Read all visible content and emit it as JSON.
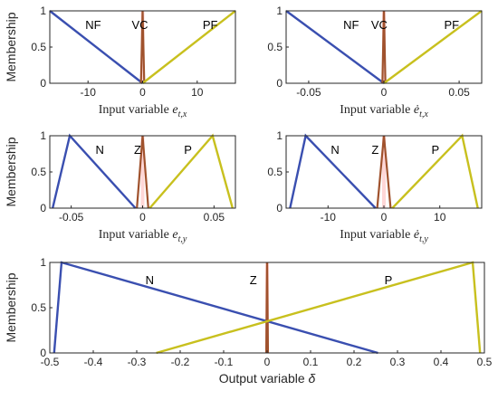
{
  "colors": {
    "negative": "#3a4fb0",
    "zero": "#a0522d",
    "zero_highlight": "#ff8c8c",
    "positive": "#c8c01e"
  },
  "chart_data": [
    {
      "type": "line",
      "ylabel": "Membership",
      "xlabel": "Input variable e_{t,x}",
      "xlabel_parts": [
        "Input variable ",
        "e",
        "t,x"
      ],
      "xlim": [
        -17,
        17
      ],
      "ylim": [
        0,
        1
      ],
      "xticks": [
        -10,
        0,
        10
      ],
      "xticklabels": [
        "-10",
        "0",
        "10"
      ],
      "yticks": [
        0,
        0.5,
        1
      ],
      "yticklabels": [
        "0",
        "0.5",
        "1"
      ],
      "series": [
        {
          "name": "NF",
          "x": [
            -17,
            0
          ],
          "y": [
            1,
            0
          ],
          "label_at": [
            -10.5,
            0.8
          ]
        },
        {
          "name": "VC",
          "x": [
            -0.3,
            0,
            0.3
          ],
          "y": [
            0,
            1,
            0
          ],
          "label_at": [
            -2,
            0.8
          ]
        },
        {
          "name": "PF",
          "x": [
            0,
            17
          ],
          "y": [
            0,
            1
          ],
          "label_at": [
            11,
            0.8
          ]
        }
      ]
    },
    {
      "type": "line",
      "ylabel": "",
      "xlabel": "Input variable ė_{t,x}",
      "xlabel_parts": [
        "Input variable ",
        "ė",
        "t,x"
      ],
      "xlim": [
        -0.065,
        0.065
      ],
      "ylim": [
        0,
        1
      ],
      "xticks": [
        -0.05,
        0,
        0.05
      ],
      "xticklabels": [
        "-0.05",
        "0",
        "0.05"
      ],
      "yticks": [
        0,
        0.5,
        1
      ],
      "yticklabels": [
        "0",
        "0.5",
        "1"
      ],
      "series": [
        {
          "name": "NF",
          "x": [
            -0.065,
            0
          ],
          "y": [
            1,
            0
          ],
          "label_at": [
            -0.027,
            0.8
          ]
        },
        {
          "name": "VC",
          "x": [
            -0.001,
            0,
            0.001
          ],
          "y": [
            0,
            1,
            0
          ],
          "label_at": [
            -0.0085,
            0.8
          ]
        },
        {
          "name": "PF",
          "x": [
            0,
            0.065
          ],
          "y": [
            0,
            1
          ],
          "label_at": [
            0.04,
            0.8
          ]
        }
      ]
    },
    {
      "type": "line",
      "ylabel": "Membership",
      "xlabel": "Input variable e_{t,y}",
      "xlabel_parts": [
        "Input variable ",
        "e",
        "t,y"
      ],
      "xlim": [
        -0.065,
        0.065
      ],
      "ylim": [
        0,
        1
      ],
      "xticks": [
        -0.05,
        0,
        0.05
      ],
      "xticklabels": [
        "-0.05",
        "0",
        "0.05"
      ],
      "yticks": [
        0,
        0.5,
        1
      ],
      "yticklabels": [
        "0",
        "0.5",
        "1"
      ],
      "series": [
        {
          "name": "N",
          "x": [
            -0.063,
            -0.051,
            -0.005
          ],
          "y": [
            0,
            1,
            0
          ],
          "label_at": [
            -0.033,
            0.8
          ]
        },
        {
          "name": "Z",
          "x": [
            -0.004,
            0,
            0.004
          ],
          "y": [
            0,
            1,
            0
          ],
          "label_at": [
            -0.006,
            0.8
          ]
        },
        {
          "name": "P",
          "x": [
            0.005,
            0.049,
            0.063
          ],
          "y": [
            0,
            1,
            0
          ],
          "label_at": [
            0.029,
            0.8
          ]
        }
      ]
    },
    {
      "type": "line",
      "ylabel": "",
      "xlabel": "Input variable ė_{t,y}",
      "xlabel_parts": [
        "Input variable ",
        "ė",
        "t,y"
      ],
      "xlim": [
        -17.5,
        17.5
      ],
      "ylim": [
        0,
        1
      ],
      "xticks": [
        -10,
        0,
        10
      ],
      "xticklabels": [
        "-10",
        "0",
        "10"
      ],
      "yticks": [
        0,
        0.5,
        1
      ],
      "yticklabels": [
        "0",
        "0.5",
        "1"
      ],
      "series": [
        {
          "name": "N",
          "x": [
            -16.8,
            -14,
            -1.5
          ],
          "y": [
            0,
            1,
            0
          ],
          "label_at": [
            -9.5,
            0.8
          ]
        },
        {
          "name": "Z",
          "x": [
            -1.2,
            0,
            1.2
          ],
          "y": [
            0,
            1,
            0
          ],
          "label_at": [
            -2.2,
            0.8
          ]
        },
        {
          "name": "P",
          "x": [
            1.5,
            14,
            16.8
          ],
          "y": [
            0,
            1,
            0
          ],
          "label_at": [
            8.5,
            0.8
          ]
        }
      ]
    },
    {
      "type": "line",
      "ylabel": "Membership",
      "xlabel": "Output variable δ",
      "xlabel_parts": [
        "Output variable ",
        "δ",
        ""
      ],
      "xlim": [
        -0.5,
        0.5
      ],
      "ylim": [
        0,
        1
      ],
      "xticks": [
        -0.5,
        -0.4,
        -0.3,
        -0.2,
        -0.1,
        0,
        0.1,
        0.2,
        0.3,
        0.4,
        0.5
      ],
      "xticklabels": [
        "-0.5",
        "-0.4",
        "-0.3",
        "-0.2",
        "-0.1",
        "0",
        "0.1",
        "0.2",
        "0.3",
        "0.4",
        "0.5"
      ],
      "yticks": [
        0,
        0.5,
        1
      ],
      "yticklabels": [
        "0",
        "0.5",
        "1"
      ],
      "series": [
        {
          "name": "N",
          "x": [
            -0.49,
            -0.473,
            0.255
          ],
          "y": [
            0,
            1,
            0
          ],
          "label_at": [
            -0.28,
            0.8
          ]
        },
        {
          "name": "Z",
          "x": [
            -0.002,
            0,
            0.002
          ],
          "y": [
            0,
            1,
            0
          ],
          "label_at": [
            -0.04,
            0.8
          ]
        },
        {
          "name": "P",
          "x": [
            -0.255,
            0.473,
            0.49
          ],
          "y": [
            0,
            1,
            0
          ],
          "label_at": [
            0.27,
            0.8
          ]
        }
      ]
    }
  ]
}
